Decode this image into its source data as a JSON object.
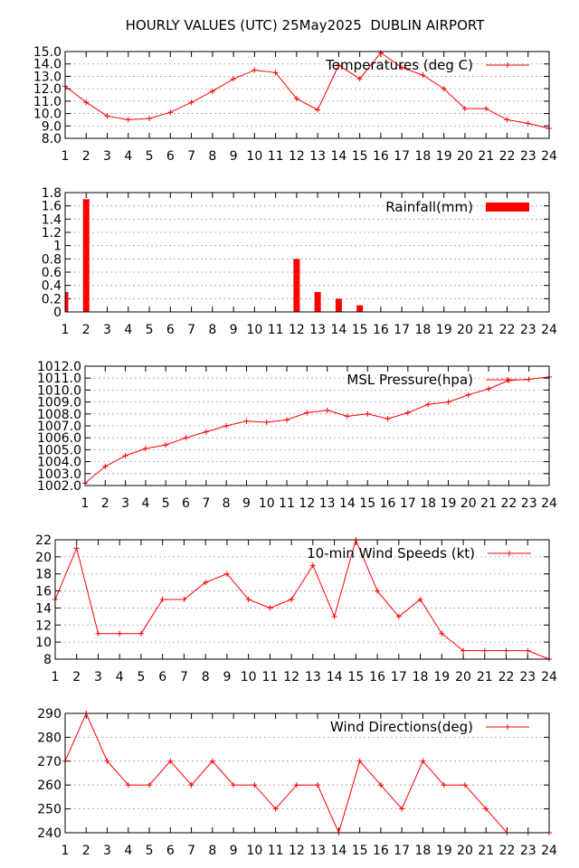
{
  "page_title": "HOURLY VALUES (UTC) 25May2025  DUBLIN AIRPORT",
  "series_color": "#ff0000",
  "chart_data": [
    {
      "type": "line",
      "legend": "Temperatures (deg C)",
      "legend_position": "top-right",
      "grid": true,
      "x": [
        1,
        2,
        3,
        4,
        5,
        6,
        7,
        8,
        9,
        10,
        11,
        12,
        13,
        14,
        15,
        16,
        17,
        18,
        19,
        20,
        21,
        22,
        23,
        24
      ],
      "values": [
        12.2,
        10.9,
        9.8,
        9.5,
        9.6,
        10.1,
        10.9,
        11.8,
        12.8,
        13.5,
        13.3,
        11.2,
        10.3,
        13.9,
        12.8,
        14.9,
        13.7,
        13.1,
        12.0,
        10.4,
        10.4,
        9.5,
        9.2,
        8.8
      ],
      "ylim": [
        8,
        15
      ],
      "yticks": [
        "8.0",
        "9.0",
        "10.0",
        "11.0",
        "12.0",
        "13.0",
        "14.0",
        "15.0"
      ],
      "xticks": [
        "1",
        "2",
        "3",
        "4",
        "5",
        "6",
        "7",
        "8",
        "9",
        "10",
        "11",
        "12",
        "13",
        "14",
        "15",
        "16",
        "17",
        "18",
        "19",
        "20",
        "21",
        "22",
        "23",
        "24"
      ]
    },
    {
      "type": "bar",
      "legend": "Rainfall(mm)",
      "legend_position": "top-right",
      "grid": true,
      "x": [
        1,
        2,
        3,
        4,
        5,
        6,
        7,
        8,
        9,
        10,
        11,
        12,
        13,
        14,
        15,
        16,
        17,
        18,
        19,
        20,
        21,
        22,
        23,
        24
      ],
      "values": [
        0.3,
        1.7,
        0,
        0,
        0,
        0,
        0,
        0,
        0,
        0,
        0,
        0.8,
        0.3,
        0.2,
        0.1,
        0,
        0,
        0,
        0,
        0,
        0,
        0,
        0,
        0
      ],
      "ylim": [
        0,
        1.8
      ],
      "yticks": [
        "0",
        "0.2",
        "0.4",
        "0.6",
        "0.8",
        "1",
        "1.2",
        "1.4",
        "1.6",
        "1.8"
      ],
      "xticks": [
        "1",
        "2",
        "3",
        "4",
        "5",
        "6",
        "7",
        "8",
        "9",
        "10",
        "11",
        "12",
        "13",
        "14",
        "15",
        "16",
        "17",
        "18",
        "19",
        "20",
        "21",
        "22",
        "23",
        "24"
      ]
    },
    {
      "type": "line",
      "legend": "MSL Pressure(hpa)",
      "legend_position": "top-right",
      "grid": true,
      "x": [
        1,
        2,
        3,
        4,
        5,
        6,
        7,
        8,
        9,
        10,
        11,
        12,
        13,
        14,
        15,
        16,
        17,
        18,
        19,
        20,
        21,
        22,
        23,
        24
      ],
      "values": [
        1002.2,
        1003.6,
        1004.5,
        1005.1,
        1005.4,
        1006.0,
        1006.5,
        1007.0,
        1007.4,
        1007.3,
        1007.5,
        1008.1,
        1008.3,
        1007.8,
        1008.0,
        1007.6,
        1008.1,
        1008.8,
        1009.0,
        1009.6,
        1010.1,
        1010.8,
        1010.9,
        1011.1
      ],
      "ylim": [
        1002,
        1012
      ],
      "yticks": [
        "1002.0",
        "1003.0",
        "1004.0",
        "1005.0",
        "1006.0",
        "1007.0",
        "1008.0",
        "1009.0",
        "1010.0",
        "1011.0",
        "1012.0"
      ],
      "xticks": [
        "1",
        "2",
        "3",
        "4",
        "5",
        "6",
        "7",
        "8",
        "9",
        "10",
        "11",
        "12",
        "13",
        "14",
        "15",
        "16",
        "17",
        "18",
        "19",
        "20",
        "21",
        "22",
        "23",
        "24"
      ]
    },
    {
      "type": "line",
      "legend": "10-min Wind Speeds (kt)",
      "legend_position": "top-right",
      "grid": true,
      "x": [
        1,
        2,
        3,
        4,
        5,
        6,
        7,
        8,
        9,
        10,
        11,
        12,
        13,
        14,
        15,
        16,
        17,
        18,
        19,
        20,
        21,
        22,
        23,
        24
      ],
      "values": [
        15,
        21,
        11,
        11,
        11,
        15,
        15,
        17,
        18,
        15,
        14,
        15,
        19,
        13,
        22,
        16,
        13,
        15,
        11,
        9,
        9,
        9,
        9,
        8
      ],
      "ylim": [
        8,
        22
      ],
      "yticks": [
        "8",
        "10",
        "12",
        "14",
        "16",
        "18",
        "20",
        "22"
      ],
      "xticks": [
        "1",
        "2",
        "3",
        "4",
        "5",
        "6",
        "7",
        "8",
        "9",
        "10",
        "11",
        "12",
        "13",
        "14",
        "15",
        "16",
        "17",
        "18",
        "19",
        "20",
        "21",
        "22",
        "23",
        "24"
      ]
    },
    {
      "type": "line",
      "legend": "Wind Directions(deg)",
      "legend_position": "top-right",
      "grid": true,
      "x": [
        1,
        2,
        3,
        4,
        5,
        6,
        7,
        8,
        9,
        10,
        11,
        12,
        13,
        14,
        15,
        16,
        17,
        18,
        19,
        20,
        21,
        22,
        23,
        24
      ],
      "values": [
        270,
        290,
        270,
        260,
        260,
        270,
        260,
        270,
        260,
        260,
        250,
        260,
        260,
        240,
        270,
        260,
        250,
        270,
        260,
        260,
        250,
        240,
        240,
        240
      ],
      "ylim": [
        240,
        290
      ],
      "yticks": [
        "240",
        "250",
        "260",
        "270",
        "280",
        "290"
      ],
      "xticks": [
        "1",
        "2",
        "3",
        "4",
        "5",
        "6",
        "7",
        "8",
        "9",
        "10",
        "11",
        "12",
        "13",
        "14",
        "15",
        "16",
        "17",
        "18",
        "19",
        "20",
        "21",
        "22",
        "23",
        "24"
      ]
    }
  ]
}
